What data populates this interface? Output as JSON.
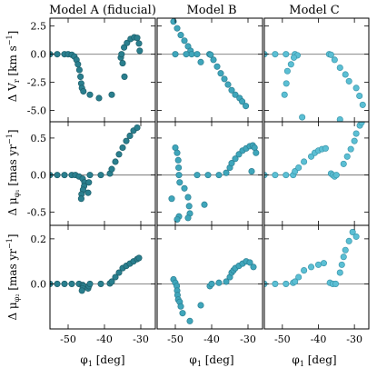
{
  "figure": {
    "columns": [
      "Model A (fiducial)",
      "Model B",
      "Model C"
    ],
    "row_ylabels": [
      {
        "main": "Δ V",
        "sub": "r",
        "unit": " [km s",
        "unitsup": "−1",
        "close": "]"
      },
      {
        "main": "Δ μ",
        "sub": "φ₁",
        "unit": " [mas yr",
        "unitsup": "−1",
        "close": "]"
      },
      {
        "main": "Δ μ",
        "sub": "φ₂",
        "unit": " [mas yr",
        "unitsup": "−1",
        "close": "]"
      }
    ],
    "xlabel": {
      "main": "φ",
      "sub": "1",
      "rest": " [deg]"
    }
  },
  "colors": {
    "model_a": "#2a7f8e",
    "model_b": "#3fa6bb",
    "model_c": "#5bbfd4",
    "edge_a": "#1c5d69",
    "edge_b": "#2c7f92",
    "edge_c": "#3d97ab"
  },
  "chart_data": {
    "type": "scatter",
    "layout": "3x3 grid, shared x-axis, shared y per row",
    "xlim": [
      -55,
      -26
    ],
    "xticks": [
      -50,
      -40,
      -30
    ],
    "xtick_labels": [
      "-50",
      "-40",
      "-30"
    ],
    "rows": [
      {
        "quantity": "delta_vr",
        "ylim": [
          -6,
          3.2
        ],
        "yticks": [
          2.5,
          0.0,
          -2.5,
          -5.0
        ],
        "ytick_labels": [
          "2.5",
          "0.0",
          "-2.5",
          "-5.0"
        ]
      },
      {
        "quantity": "delta_mu_phi1",
        "ylim": [
          -0.68,
          0.72
        ],
        "yticks": [
          0.5,
          0.0,
          -0.5
        ],
        "ytick_labels": [
          "0.5",
          "0.0",
          "-0.5"
        ]
      },
      {
        "quantity": "delta_mu_phi2",
        "ylim": [
          -0.2,
          0.26
        ],
        "yticks": [
          0.2,
          0.0
        ],
        "ytick_labels": [
          "0.2",
          "0.0"
        ]
      }
    ],
    "panels": [
      {
        "row": 0,
        "col": 0,
        "points": [
          [
            -55,
            0
          ],
          [
            -53,
            0
          ],
          [
            -51,
            0
          ],
          [
            -50,
            0
          ],
          [
            -49,
            -0.05
          ],
          [
            -48.3,
            -0.2
          ],
          [
            -47.7,
            -0.5
          ],
          [
            -47.3,
            -0.9
          ],
          [
            -46.9,
            -1.4
          ],
          [
            -46.6,
            -2.0
          ],
          [
            -46.4,
            -2.6
          ],
          [
            -46.2,
            -3.0
          ],
          [
            -45.8,
            -3.3
          ],
          [
            -44,
            -3.6
          ],
          [
            -41.5,
            -3.9
          ],
          [
            -38,
            -3.6
          ],
          [
            -34.5,
            -2.0
          ],
          [
            -35,
            -0.8
          ],
          [
            -35.5,
            -0.3
          ],
          [
            -35.3,
            0
          ],
          [
            -34.6,
            0.6
          ],
          [
            -33.8,
            1.0
          ],
          [
            -32.8,
            1.35
          ],
          [
            -31.8,
            1.5
          ],
          [
            -31,
            1.45
          ],
          [
            -30.5,
            0.95
          ],
          [
            -30.3,
            0.3
          ]
        ]
      },
      {
        "row": 0,
        "col": 1,
        "points": [
          [
            -50.5,
            2.9
          ],
          [
            -49.5,
            2.3
          ],
          [
            -48.5,
            1.7
          ],
          [
            -47.5,
            1.2
          ],
          [
            -46.5,
            0.7
          ],
          [
            -45.8,
            0.3
          ],
          [
            -45.5,
            0
          ],
          [
            -50,
            0
          ],
          [
            -47,
            0
          ],
          [
            -44,
            0
          ],
          [
            -43,
            -0.7
          ],
          [
            -40.6,
            0
          ],
          [
            -40.3,
            -0.05
          ],
          [
            -39.5,
            -0.5
          ],
          [
            -38.5,
            -1.1
          ],
          [
            -37.5,
            -1.7
          ],
          [
            -36.5,
            -2.2
          ],
          [
            -35.5,
            -2.7
          ],
          [
            -34.5,
            -3.2
          ],
          [
            -33.5,
            -3.6
          ],
          [
            -32.3,
            -3.9
          ],
          [
            -31.6,
            -4.2
          ],
          [
            -30.6,
            -4.6
          ]
        ]
      },
      {
        "row": 0,
        "col": 2,
        "points": [
          [
            -55,
            0
          ],
          [
            -52,
            0
          ],
          [
            -49,
            0
          ],
          [
            -46.5,
            0
          ],
          [
            -45.8,
            -0.1
          ],
          [
            -46.8,
            -0.3
          ],
          [
            -47.6,
            -0.9
          ],
          [
            -48.6,
            -1.5
          ],
          [
            -48.9,
            -2.6
          ],
          [
            -49.4,
            -3.6
          ],
          [
            -44.5,
            -5.6
          ],
          [
            -37,
            0
          ],
          [
            -36.5,
            -0.05
          ],
          [
            -35.5,
            -0.5
          ],
          [
            -34,
            -1.2
          ],
          [
            -32.5,
            -1.8
          ],
          [
            -31.5,
            -2.4
          ],
          [
            -29.5,
            -3.0
          ],
          [
            -28.6,
            -3.7
          ],
          [
            -27.7,
            -4.5
          ],
          [
            -34,
            -5.8
          ]
        ]
      },
      {
        "row": 1,
        "col": 0,
        "points": [
          [
            -55,
            0
          ],
          [
            -53,
            0
          ],
          [
            -51,
            0
          ],
          [
            -49,
            0
          ],
          [
            -48,
            0
          ],
          [
            -47,
            -0.02
          ],
          [
            -46,
            -0.05
          ],
          [
            -45.5,
            -0.1
          ],
          [
            -45.6,
            -0.15
          ],
          [
            -45.9,
            -0.2
          ],
          [
            -46.3,
            -0.26
          ],
          [
            -46.4,
            -0.32
          ],
          [
            -44.5,
            -0.24
          ],
          [
            -44.3,
            -0.1
          ],
          [
            -44,
            0
          ],
          [
            -41,
            0
          ],
          [
            -38.5,
            0.02
          ],
          [
            -38,
            0.08
          ],
          [
            -37,
            0.18
          ],
          [
            -36,
            0.28
          ],
          [
            -35,
            0.37
          ],
          [
            -34,
            0.46
          ],
          [
            -33,
            0.53
          ],
          [
            -32,
            0.6
          ],
          [
            -31,
            0.64
          ]
        ]
      },
      {
        "row": 1,
        "col": 1,
        "points": [
          [
            -50,
            0.37
          ],
          [
            -49.5,
            0.3
          ],
          [
            -49.2,
            0.2
          ],
          [
            -49.1,
            0.1
          ],
          [
            -49,
            0
          ],
          [
            -48.8,
            -0.1
          ],
          [
            -47.5,
            -0.18
          ],
          [
            -46.5,
            -0.3
          ],
          [
            -46.2,
            -0.42
          ],
          [
            -46,
            -0.52
          ],
          [
            -46.5,
            -0.58
          ],
          [
            -49,
            -0.56
          ],
          [
            -49.5,
            -0.6
          ],
          [
            -51,
            -0.32
          ],
          [
            -42,
            -0.4
          ],
          [
            -44,
            0
          ],
          [
            -41,
            0
          ],
          [
            -38,
            0
          ],
          [
            -36,
            0.03
          ],
          [
            -35,
            0.1
          ],
          [
            -34.5,
            0.16
          ],
          [
            -33.5,
            0.22
          ],
          [
            -32.5,
            0.28
          ],
          [
            -31.5,
            0.33
          ],
          [
            -30.5,
            0.36
          ],
          [
            -29.5,
            0.39
          ],
          [
            -28.7,
            0.4
          ],
          [
            -28.2,
            0.37
          ],
          [
            -27.8,
            0.3
          ],
          [
            -29,
            0.05
          ]
        ]
      },
      {
        "row": 1,
        "col": 2,
        "points": [
          [
            -55,
            0
          ],
          [
            -52,
            0
          ],
          [
            -49,
            0
          ],
          [
            -47,
            0
          ],
          [
            -46.5,
            0.05
          ],
          [
            -45.5,
            0.1
          ],
          [
            -44,
            0.18
          ],
          [
            -42,
            0.25
          ],
          [
            -41,
            0.3
          ],
          [
            -40,
            0.33
          ],
          [
            -39,
            0.35
          ],
          [
            -38,
            0.36
          ],
          [
            -36.5,
            0.02
          ],
          [
            -36,
            0
          ],
          [
            -35.5,
            -0.02
          ],
          [
            -35,
            0
          ],
          [
            -33,
            0.15
          ],
          [
            -32,
            0.25
          ],
          [
            -31,
            0.35
          ],
          [
            -30,
            0.46
          ],
          [
            -29.5,
            0.56
          ],
          [
            -28.5,
            0.67
          ],
          [
            -28,
            0.71
          ]
        ]
      },
      {
        "row": 2,
        "col": 0,
        "points": [
          [
            -55,
            0
          ],
          [
            -53,
            0
          ],
          [
            -51,
            0
          ],
          [
            -49,
            0
          ],
          [
            -47,
            0
          ],
          [
            -46,
            -0.005
          ],
          [
            -45.8,
            -0.01
          ],
          [
            -46,
            -0.02
          ],
          [
            -46.2,
            -0.03
          ],
          [
            -44.5,
            -0.02
          ],
          [
            -44.3,
            -0.01
          ],
          [
            -44,
            0
          ],
          [
            -41,
            0
          ],
          [
            -38.5,
            0.002
          ],
          [
            -38,
            0.01
          ],
          [
            -37,
            0.03
          ],
          [
            -36,
            0.05
          ],
          [
            -35,
            0.07
          ],
          [
            -34,
            0.08
          ],
          [
            -33,
            0.09
          ],
          [
            -32,
            0.1
          ],
          [
            -31,
            0.11
          ],
          [
            -30.5,
            0.115
          ]
        ]
      },
      {
        "row": 2,
        "col": 1,
        "points": [
          [
            -50.5,
            0.02
          ],
          [
            -50,
            0.005
          ],
          [
            -49.6,
            -0.01
          ],
          [
            -49.5,
            -0.03
          ],
          [
            -49.4,
            -0.05
          ],
          [
            -49.2,
            -0.07
          ],
          [
            -48.8,
            -0.08
          ],
          [
            -48.5,
            -0.1
          ],
          [
            -48,
            -0.13
          ],
          [
            -46,
            -0.165
          ],
          [
            -43,
            -0.095
          ],
          [
            -40.5,
            -0.01
          ],
          [
            -40,
            0
          ],
          [
            -38,
            0.005
          ],
          [
            -36,
            0.01
          ],
          [
            -35,
            0.03
          ],
          [
            -34.5,
            0.05
          ],
          [
            -34,
            0.06
          ],
          [
            -33.5,
            0.07
          ],
          [
            -32.5,
            0.08
          ],
          [
            -31.5,
            0.09
          ],
          [
            -30.5,
            0.1
          ],
          [
            -29.5,
            0.095
          ],
          [
            -28.5,
            0.075
          ]
        ]
      },
      {
        "row": 2,
        "col": 2,
        "points": [
          [
            -55,
            0
          ],
          [
            -52,
            0
          ],
          [
            -49,
            0
          ],
          [
            -47,
            0.005
          ],
          [
            -46.5,
            0.01
          ],
          [
            -45.5,
            0.03
          ],
          [
            -44,
            0.06
          ],
          [
            -42,
            0.075
          ],
          [
            -40,
            0.085
          ],
          [
            -38.5,
            0.092
          ],
          [
            -36.8,
            0.005
          ],
          [
            -36,
            0
          ],
          [
            -35.2,
            0
          ],
          [
            -34,
            0.05
          ],
          [
            -33.5,
            0.085
          ],
          [
            -33,
            0.12
          ],
          [
            -32.5,
            0.15
          ],
          [
            -31.5,
            0.19
          ],
          [
            -30.5,
            0.23
          ],
          [
            -29.5,
            0.21
          ]
        ]
      }
    ]
  }
}
